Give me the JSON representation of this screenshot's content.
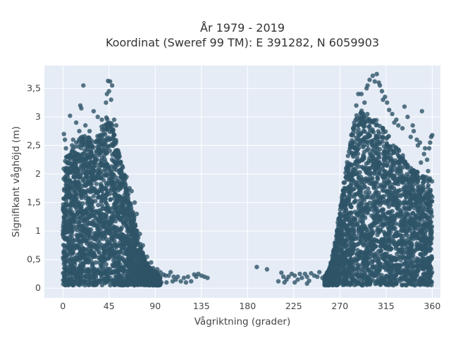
{
  "chart_data": {
    "type": "scatter",
    "title": "År 1979 - 2019",
    "subtitle": "Koordinat (Sweref 99 TM): E 391282, N 6059903",
    "xlabel": "Vågriktning (grader)",
    "ylabel": "Signifikant våghöjd (m)",
    "xlim": [
      -18,
      368
    ],
    "ylim": [
      -0.17,
      3.9
    ],
    "xticks": [
      0,
      45,
      90,
      135,
      180,
      225,
      270,
      315,
      360
    ],
    "xtick_labels": [
      "0",
      "45",
      "90",
      "135",
      "180",
      "225",
      "270",
      "315",
      "360"
    ],
    "yticks": [
      0,
      0.5,
      1,
      1.5,
      2,
      2.5,
      3,
      3.5
    ],
    "ytick_labels": [
      "0",
      "0,5",
      "1",
      "1,5",
      "2",
      "2,5",
      "3",
      "3,5"
    ],
    "grid": true,
    "marker_color": "#2e5468",
    "plot_background": "#e5ecf6",
    "clusters": [
      {
        "direction_range": [
          0,
          95
        ],
        "envelope": [
          [
            0,
            2.2
          ],
          [
            10,
            2.5
          ],
          [
            20,
            2.7
          ],
          [
            30,
            2.6
          ],
          [
            40,
            2.9
          ],
          [
            45,
            3.1
          ],
          [
            50,
            2.7
          ],
          [
            55,
            2.4
          ],
          [
            60,
            2.0
          ],
          [
            65,
            1.6
          ],
          [
            70,
            1.2
          ],
          [
            75,
            0.8
          ],
          [
            80,
            0.5
          ],
          [
            85,
            0.35
          ],
          [
            90,
            0.3
          ],
          [
            95,
            0.2
          ]
        ],
        "wave_height_min": 0.05
      },
      {
        "direction_range": [
          255,
          360
        ],
        "envelope": [
          [
            255,
            0.2
          ],
          [
            260,
            0.35
          ],
          [
            265,
            0.8
          ],
          [
            270,
            1.4
          ],
          [
            275,
            2.0
          ],
          [
            280,
            2.6
          ],
          [
            285,
            3.0
          ],
          [
            290,
            3.1
          ],
          [
            295,
            3.15
          ],
          [
            300,
            3.0
          ],
          [
            310,
            2.9
          ],
          [
            320,
            2.6
          ],
          [
            330,
            2.4
          ],
          [
            340,
            2.1
          ],
          [
            350,
            2.0
          ],
          [
            360,
            1.9
          ]
        ],
        "wave_height_min": 0.05
      }
    ],
    "points": [
      [
        46,
        3.62
      ],
      [
        44,
        3.63
      ],
      [
        48,
        3.55
      ],
      [
        45,
        3.45
      ],
      [
        43,
        3.4
      ],
      [
        20,
        3.55
      ],
      [
        17,
        3.2
      ],
      [
        18,
        3.15
      ],
      [
        7,
        3.02
      ],
      [
        13,
        2.9
      ],
      [
        16,
        2.75
      ],
      [
        22,
        2.85
      ],
      [
        26,
        2.75
      ],
      [
        30,
        3.1
      ],
      [
        34,
        3.0
      ],
      [
        38,
        2.95
      ],
      [
        42,
        3.25
      ],
      [
        47,
        3.3
      ],
      [
        50,
        2.95
      ],
      [
        52,
        2.85
      ],
      [
        10,
        2.6
      ],
      [
        9,
        2.5
      ],
      [
        3,
        2.45
      ],
      [
        24,
        2.55
      ],
      [
        1,
        2.7
      ],
      [
        2,
        2.6
      ],
      [
        4,
        2.2
      ],
      [
        62,
        1.95
      ],
      [
        65,
        1.75
      ],
      [
        67,
        1.7
      ],
      [
        70,
        1.5
      ],
      [
        72,
        1.3
      ],
      [
        75,
        0.95
      ],
      [
        78,
        0.75
      ],
      [
        82,
        0.55
      ],
      [
        86,
        0.45
      ],
      [
        88,
        0.35
      ],
      [
        92,
        0.33
      ],
      [
        95,
        0.28
      ],
      [
        98,
        0.24
      ],
      [
        100,
        0.22
      ],
      [
        103,
        0.22
      ],
      [
        105,
        0.28
      ],
      [
        108,
        0.2
      ],
      [
        110,
        0.15
      ],
      [
        112,
        0.2
      ],
      [
        115,
        0.12
      ],
      [
        118,
        0.18
      ],
      [
        122,
        0.2
      ],
      [
        125,
        0.12
      ],
      [
        128,
        0.24
      ],
      [
        130,
        0.2
      ],
      [
        132,
        0.25
      ],
      [
        135,
        0.22
      ],
      [
        138,
        0.2
      ],
      [
        141,
        0.18
      ],
      [
        96,
        0.1
      ],
      [
        101,
        0.1
      ],
      [
        107,
        0.12
      ],
      [
        120,
        0.1
      ],
      [
        189,
        0.37
      ],
      [
        199,
        0.33
      ],
      [
        210,
        0.12
      ],
      [
        213,
        0.27
      ],
      [
        215,
        0.2
      ],
      [
        218,
        0.15
      ],
      [
        220,
        0.2
      ],
      [
        223,
        0.25
      ],
      [
        226,
        0.22
      ],
      [
        229,
        0.15
      ],
      [
        231,
        0.25
      ],
      [
        233,
        0.18
      ],
      [
        236,
        0.25
      ],
      [
        238,
        0.2
      ],
      [
        240,
        0.13
      ],
      [
        242,
        0.26
      ],
      [
        245,
        0.22
      ],
      [
        248,
        0.2
      ],
      [
        250,
        0.28
      ],
      [
        253,
        0.18
      ],
      [
        216,
        0.1
      ],
      [
        226,
        0.1
      ],
      [
        238,
        0.08
      ],
      [
        268,
        1.15
      ],
      [
        272,
        1.5
      ],
      [
        276,
        2.1
      ],
      [
        280,
        2.5
      ],
      [
        284,
        2.9
      ],
      [
        286,
        3.2
      ],
      [
        288,
        3.4
      ],
      [
        291,
        3.4
      ],
      [
        294,
        3.25
      ],
      [
        296,
        3.5
      ],
      [
        297,
        3.55
      ],
      [
        299,
        3.65
      ],
      [
        302,
        3.72
      ],
      [
        304,
        3.62
      ],
      [
        306,
        3.75
      ],
      [
        308,
        3.6
      ],
      [
        309,
        3.55
      ],
      [
        311,
        3.45
      ],
      [
        312,
        3.3
      ],
      [
        314,
        3.35
      ],
      [
        316,
        3.25
      ],
      [
        318,
        3.12
      ],
      [
        321,
        3.05
      ],
      [
        323,
        2.9
      ],
      [
        325,
        2.95
      ],
      [
        327,
        2.85
      ],
      [
        331,
        2.8
      ],
      [
        333,
        3.18
      ],
      [
        336,
        3.0
      ],
      [
        339,
        2.65
      ],
      [
        341,
        2.85
      ],
      [
        342,
        2.75
      ],
      [
        345,
        2.6
      ],
      [
        348,
        2.55
      ],
      [
        350,
        3.1
      ],
      [
        353,
        2.45
      ],
      [
        355,
        2.25
      ],
      [
        356,
        2.05
      ],
      [
        357,
        2.45
      ],
      [
        358,
        2.55
      ],
      [
        359,
        2.65
      ],
      [
        360,
        2.68
      ],
      [
        349,
        2.2
      ],
      [
        352,
        2.35
      ],
      [
        346,
        2.5
      ]
    ]
  }
}
